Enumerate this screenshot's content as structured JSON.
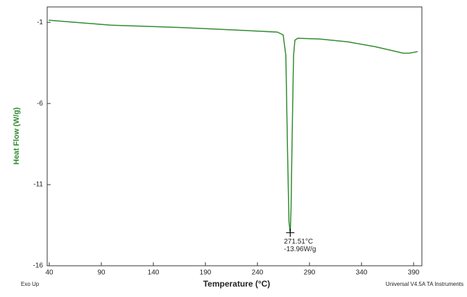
{
  "chart_data": {
    "type": "line",
    "x_label": "Temperature (°C)",
    "y_label": "Heat Flow (W/g)",
    "footer_left": "Exo Up",
    "footer_right": "Universal V4.5A TA Instruments",
    "xlim": [
      38,
      398
    ],
    "ylim": [
      -16,
      -0.05
    ],
    "xticks": [
      40,
      90,
      140,
      190,
      240,
      290,
      340,
      390
    ],
    "yticks": [
      -1,
      -6,
      -11,
      -16
    ],
    "series": [
      {
        "color": "#2e8b2e",
        "x": [
          39.5,
          99,
          159,
          219,
          259,
          264.7,
          267.3,
          268.7,
          270.3,
          271.51,
          272.3,
          273.3,
          274.7,
          276,
          278.7,
          300,
          326.7,
          353,
          380,
          386,
          394
        ],
        "values": [
          -0.87,
          -1.17,
          -1.3,
          -1.47,
          -1.6,
          -1.77,
          -3.05,
          -8.2,
          -13.3,
          -13.96,
          -12.45,
          -8.2,
          -3.05,
          -2.1,
          -1.98,
          -2.03,
          -2.2,
          -2.5,
          -2.9,
          -2.9,
          -2.8
        ]
      }
    ],
    "annotation": {
      "x": 271.51,
      "y": -13.96,
      "x_text": "271.51°C",
      "y_text": "-13.96W/g"
    }
  }
}
